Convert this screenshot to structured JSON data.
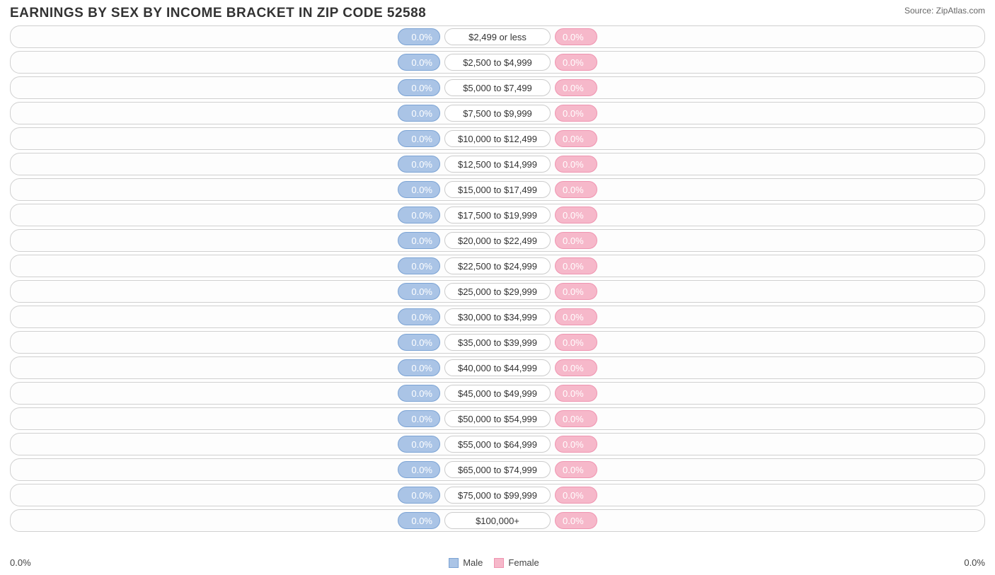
{
  "title": "EARNINGS BY SEX BY INCOME BRACKET IN ZIP CODE 52588",
  "source": "Source: ZipAtlas.com",
  "axis": {
    "left": "0.0%",
    "right": "0.0%"
  },
  "colors": {
    "male_fill": "#aac4e6",
    "male_border": "#7ba3d4",
    "male_text": "#ffffff",
    "female_fill": "#f6b8ca",
    "female_border": "#ef94b0",
    "female_text": "#ffffff",
    "row_border": "#d0d0d0",
    "label_border": "#cccccc",
    "label_text": "#333333",
    "background": "#ffffff"
  },
  "legend": {
    "male": "Male",
    "female": "Female"
  },
  "pill_min_width": 60,
  "categories": [
    {
      "label": "$2,499 or less",
      "male": "0.0%",
      "female": "0.0%"
    },
    {
      "label": "$2,500 to $4,999",
      "male": "0.0%",
      "female": "0.0%"
    },
    {
      "label": "$5,000 to $7,499",
      "male": "0.0%",
      "female": "0.0%"
    },
    {
      "label": "$7,500 to $9,999",
      "male": "0.0%",
      "female": "0.0%"
    },
    {
      "label": "$10,000 to $12,499",
      "male": "0.0%",
      "female": "0.0%"
    },
    {
      "label": "$12,500 to $14,999",
      "male": "0.0%",
      "female": "0.0%"
    },
    {
      "label": "$15,000 to $17,499",
      "male": "0.0%",
      "female": "0.0%"
    },
    {
      "label": "$17,500 to $19,999",
      "male": "0.0%",
      "female": "0.0%"
    },
    {
      "label": "$20,000 to $22,499",
      "male": "0.0%",
      "female": "0.0%"
    },
    {
      "label": "$22,500 to $24,999",
      "male": "0.0%",
      "female": "0.0%"
    },
    {
      "label": "$25,000 to $29,999",
      "male": "0.0%",
      "female": "0.0%"
    },
    {
      "label": "$30,000 to $34,999",
      "male": "0.0%",
      "female": "0.0%"
    },
    {
      "label": "$35,000 to $39,999",
      "male": "0.0%",
      "female": "0.0%"
    },
    {
      "label": "$40,000 to $44,999",
      "male": "0.0%",
      "female": "0.0%"
    },
    {
      "label": "$45,000 to $49,999",
      "male": "0.0%",
      "female": "0.0%"
    },
    {
      "label": "$50,000 to $54,999",
      "male": "0.0%",
      "female": "0.0%"
    },
    {
      "label": "$55,000 to $64,999",
      "male": "0.0%",
      "female": "0.0%"
    },
    {
      "label": "$65,000 to $74,999",
      "male": "0.0%",
      "female": "0.0%"
    },
    {
      "label": "$75,000 to $99,999",
      "male": "0.0%",
      "female": "0.0%"
    },
    {
      "label": "$100,000+",
      "male": "0.0%",
      "female": "0.0%"
    }
  ]
}
